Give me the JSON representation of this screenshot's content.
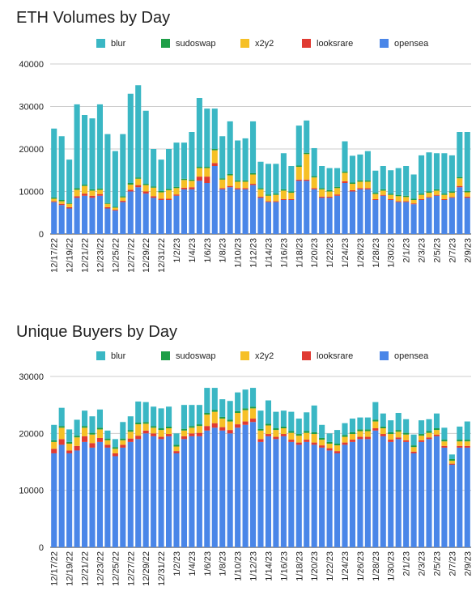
{
  "legend_colors": {
    "blur": "#3ab7c4",
    "sudoswap": "#1e9e47",
    "x2y2": "#f6c026",
    "looksrare": "#e03a32",
    "opensea": "#4a86e8"
  },
  "chart_data": [
    {
      "type": "bar",
      "stacked": true,
      "title": "ETH Volumes by Day",
      "ylim": [
        0,
        40000
      ],
      "yticks": [
        0,
        10000,
        20000,
        30000,
        40000
      ],
      "grid": true,
      "legend_position": "top",
      "legend": [
        "blur",
        "sudoswap",
        "x2y2",
        "looksrare",
        "opensea"
      ],
      "categories": [
        "12/17/22",
        "12/18/22",
        "12/19/22",
        "12/20/22",
        "12/21/22",
        "12/22/22",
        "12/23/22",
        "12/24/22",
        "12/25/22",
        "12/26/22",
        "12/27/22",
        "12/28/22",
        "12/29/22",
        "12/30/22",
        "12/31/22",
        "1/1/23",
        "1/2/23",
        "1/3/23",
        "1/4/23",
        "1/5/23",
        "1/6/23",
        "1/7/23",
        "1/8/23",
        "1/9/23",
        "1/10/23",
        "1/11/23",
        "1/12/23",
        "1/13/23",
        "1/14/23",
        "1/15/23",
        "1/16/23",
        "1/17/23",
        "1/18/23",
        "1/19/23",
        "1/20/23",
        "1/21/23",
        "1/22/23",
        "1/23/23",
        "1/24/23",
        "1/25/23",
        "1/26/23",
        "1/27/23",
        "1/28/23",
        "1/29/23",
        "1/30/23",
        "1/31/23",
        "2/1/23",
        "2/2/23",
        "2/3/23",
        "2/4/23",
        "2/5/23",
        "2/6/23",
        "2/7/23",
        "2/8/23",
        "2/9/23"
      ],
      "tick_labels": [
        "12/17/22",
        "12/19/22",
        "12/21/22",
        "12/23/22",
        "12/25/22",
        "12/27/22",
        "12/29/22",
        "12/31/22",
        "1/2/23",
        "1/4/23",
        "1/6/23",
        "1/8/23",
        "1/10/23",
        "1/12/23",
        "1/14/23",
        "1/16/23",
        "1/18/23",
        "1/20/23",
        "1/22/23",
        "1/24/23",
        "1/26/23",
        "1/28/23",
        "1/30/23",
        "2/1/23",
        "2/3/23",
        "2/5/23",
        "2/7/23",
        "2/9/23"
      ],
      "series": [
        {
          "name": "opensea",
          "values": [
            7500,
            6800,
            6000,
            8500,
            9000,
            8500,
            9000,
            6000,
            5500,
            7500,
            10000,
            11000,
            9500,
            8500,
            8000,
            8000,
            9000,
            10500,
            10500,
            12500,
            12000,
            16000,
            10500,
            11000,
            10500,
            10500,
            11500,
            8500,
            7500,
            7500,
            8000,
            8000,
            12500,
            12500,
            10500,
            8500,
            8500,
            9000,
            12000,
            10000,
            10500,
            10500,
            8000,
            9000,
            8000,
            7500,
            7500,
            7000,
            8000,
            8500,
            9000,
            8000,
            8500,
            11000,
            8500
          ]
        },
        {
          "name": "looksrare",
          "values": [
            200,
            300,
            300,
            400,
            500,
            500,
            400,
            300,
            200,
            300,
            400,
            500,
            500,
            400,
            300,
            300,
            300,
            400,
            500,
            1000,
            1500,
            700,
            300,
            300,
            300,
            300,
            300,
            300,
            200,
            200,
            200,
            200,
            300,
            300,
            300,
            300,
            300,
            300,
            400,
            300,
            300,
            300,
            200,
            200,
            200,
            200,
            200,
            200,
            200,
            200,
            200,
            200,
            200,
            300,
            300
          ]
        },
        {
          "name": "x2y2",
          "values": [
            600,
            600,
            800,
            1500,
            1800,
            1200,
            1000,
            800,
            500,
            800,
            1200,
            1500,
            1500,
            2000,
            1500,
            2000,
            1500,
            1800,
            1500,
            2000,
            2000,
            3000,
            2000,
            2500,
            1500,
            1500,
            2200,
            1700,
            1300,
            1500,
            2000,
            1500,
            3000,
            6000,
            2500,
            1700,
            1200,
            1500,
            2000,
            1500,
            1500,
            1500,
            1200,
            1000,
            1000,
            1200,
            1000,
            800,
            1000,
            1000,
            1000,
            1000,
            1000,
            1800,
            1000
          ]
        },
        {
          "name": "sudoswap",
          "values": [
            300,
            300,
            200,
            400,
            300,
            300,
            300,
            200,
            200,
            300,
            400,
            300,
            300,
            300,
            300,
            300,
            300,
            300,
            300,
            300,
            300,
            300,
            300,
            300,
            300,
            300,
            300,
            300,
            300,
            300,
            300,
            300,
            300,
            300,
            300,
            300,
            300,
            300,
            300,
            300,
            300,
            300,
            300,
            300,
            300,
            300,
            300,
            300,
            300,
            300,
            300,
            300,
            300,
            300,
            300
          ]
        },
        {
          "name": "blur",
          "values": [
            16200,
            15000,
            10200,
            19700,
            16400,
            16700,
            19800,
            16200,
            13100,
            14600,
            21000,
            21700,
            17200,
            8800,
            7400,
            9400,
            10400,
            8500,
            11200,
            16200,
            13700,
            9500,
            9900,
            12400,
            9400,
            9900,
            12200,
            6200,
            7200,
            7000,
            8500,
            6000,
            9400,
            7600,
            6600,
            5200,
            5200,
            4400,
            7100,
            6300,
            6100,
            6900,
            5200,
            5500,
            5500,
            6300,
            7000,
            5700,
            9000,
            9200,
            8500,
            9500,
            8500,
            10600,
            13900
          ]
        }
      ]
    },
    {
      "type": "bar",
      "stacked": true,
      "title": "Unique Buyers by Day",
      "ylim": [
        0,
        30000
      ],
      "yticks": [
        0,
        10000,
        20000,
        30000
      ],
      "grid": true,
      "legend_position": "top",
      "legend": [
        "blur",
        "sudoswap",
        "x2y2",
        "looksrare",
        "opensea"
      ],
      "categories": [
        "12/17/22",
        "12/18/22",
        "12/19/22",
        "12/20/22",
        "12/21/22",
        "12/22/22",
        "12/23/22",
        "12/24/22",
        "12/25/22",
        "12/26/22",
        "12/27/22",
        "12/28/22",
        "12/29/22",
        "12/30/22",
        "12/31/22",
        "1/1/23",
        "1/2/23",
        "1/3/23",
        "1/4/23",
        "1/5/23",
        "1/6/23",
        "1/7/23",
        "1/8/23",
        "1/9/23",
        "1/10/23",
        "1/11/23",
        "1/12/23",
        "1/13/23",
        "1/14/23",
        "1/15/23",
        "1/16/23",
        "1/17/23",
        "1/18/23",
        "1/19/23",
        "1/20/23",
        "1/21/23",
        "1/22/23",
        "1/23/23",
        "1/24/23",
        "1/25/23",
        "1/26/23",
        "1/27/23",
        "1/28/23",
        "1/29/23",
        "1/30/23",
        "1/31/23",
        "2/1/23",
        "2/2/23",
        "2/3/23",
        "2/4/23",
        "2/5/23",
        "2/6/23",
        "2/7/23",
        "2/8/23",
        "2/9/23"
      ],
      "tick_labels": [
        "12/17/22",
        "12/19/22",
        "12/21/22",
        "12/23/22",
        "12/25/22",
        "12/27/22",
        "12/29/22",
        "12/31/22",
        "1/2/23",
        "1/4/23",
        "1/6/23",
        "1/8/23",
        "1/10/23",
        "1/12/23",
        "1/14/23",
        "1/16/23",
        "1/18/23",
        "1/20/23",
        "1/22/23",
        "1/24/23",
        "1/26/23",
        "1/28/23",
        "1/30/23",
        "2/1/23",
        "2/3/23",
        "2/5/23",
        "2/7/23",
        "2/9/23"
      ],
      "series": [
        {
          "name": "opensea",
          "values": [
            16500,
            18000,
            16500,
            17000,
            18500,
            17500,
            18500,
            17500,
            16000,
            17500,
            18500,
            19000,
            20000,
            19500,
            19000,
            19500,
            16500,
            19000,
            19500,
            19500,
            20500,
            21000,
            20500,
            20000,
            21000,
            21500,
            22000,
            18500,
            19500,
            19000,
            19500,
            18500,
            18000,
            18500,
            18000,
            17500,
            17000,
            16500,
            18000,
            18500,
            19000,
            19000,
            20500,
            19500,
            18500,
            19000,
            18500,
            16500,
            18500,
            19000,
            19500,
            17500,
            14500,
            17500,
            17500
          ]
        },
        {
          "name": "looksrare",
          "values": [
            800,
            1000,
            500,
            800,
            1000,
            800,
            700,
            500,
            500,
            500,
            600,
            600,
            500,
            500,
            400,
            400,
            400,
            500,
            500,
            600,
            800,
            800,
            600,
            600,
            600,
            600,
            600,
            500,
            400,
            400,
            400,
            400,
            400,
            400,
            400,
            400,
            400,
            400,
            400,
            400,
            400,
            400,
            400,
            400,
            400,
            300,
            300,
            300,
            300,
            300,
            300,
            300,
            200,
            300,
            300
          ]
        },
        {
          "name": "x2y2",
          "values": [
            1200,
            2000,
            1200,
            1500,
            1500,
            1500,
            1500,
            800,
            800,
            800,
            1200,
            2000,
            1200,
            1000,
            1200,
            1000,
            800,
            1000,
            1000,
            1200,
            2000,
            2000,
            1500,
            1500,
            2000,
            2000,
            1800,
            1500,
            1500,
            1200,
            1000,
            1200,
            1200,
            1200,
            1500,
            1000,
            800,
            1000,
            1000,
            1000,
            1000,
            1000,
            1200,
            1000,
            1000,
            1000,
            1000,
            800,
            800,
            800,
            800,
            800,
            500,
            800,
            800
          ]
        },
        {
          "name": "sudoswap",
          "values": [
            300,
            300,
            300,
            300,
            300,
            300,
            300,
            300,
            300,
            300,
            300,
            300,
            300,
            300,
            300,
            300,
            300,
            300,
            300,
            300,
            300,
            300,
            300,
            300,
            300,
            300,
            300,
            300,
            300,
            300,
            300,
            300,
            300,
            300,
            300,
            300,
            300,
            300,
            300,
            300,
            300,
            300,
            300,
            300,
            300,
            300,
            300,
            300,
            300,
            300,
            300,
            300,
            300,
            300,
            300
          ]
        },
        {
          "name": "blur",
          "values": [
            2700,
            3200,
            2200,
            2800,
            2700,
            2900,
            3200,
            1400,
            1400,
            2900,
            2400,
            3700,
            3500,
            3400,
            3500,
            3500,
            2000,
            4200,
            3700,
            3400,
            4400,
            3900,
            3100,
            3300,
            3300,
            3300,
            3300,
            3200,
            4100,
            2900,
            2800,
            3400,
            2700,
            3300,
            4700,
            2300,
            1500,
            2400,
            2100,
            2400,
            2100,
            2100,
            3100,
            2300,
            2100,
            3000,
            2400,
            1900,
            2400,
            2100,
            2600,
            2100,
            800,
            2300,
            3200
          ]
        }
      ]
    }
  ]
}
